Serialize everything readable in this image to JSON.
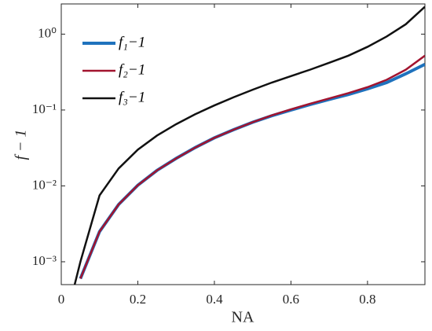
{
  "chart_data": {
    "type": "line",
    "xlabel": "NA",
    "ylabel": "f − 1",
    "x": [
      0.035,
      0.05,
      0.1,
      0.15,
      0.2,
      0.25,
      0.3,
      0.35,
      0.4,
      0.45,
      0.5,
      0.55,
      0.6,
      0.65,
      0.7,
      0.75,
      0.8,
      0.85,
      0.9,
      0.95
    ],
    "series": [
      {
        "name": "f₁−1",
        "color": "#1f72bd",
        "values": [
          null,
          0.0006,
          0.0025,
          0.0057,
          0.0102,
          0.016,
          0.023,
          0.032,
          0.043,
          0.055,
          0.069,
          0.084,
          0.1,
          0.118,
          0.138,
          0.16,
          0.19,
          0.23,
          0.3,
          0.4
        ]
      },
      {
        "name": "f₂−1",
        "color": "#a2142f",
        "values": [
          null,
          0.0006,
          0.0025,
          0.0057,
          0.0102,
          0.016,
          0.023,
          0.032,
          0.043,
          0.055,
          0.069,
          0.085,
          0.102,
          0.121,
          0.142,
          0.167,
          0.2,
          0.25,
          0.34,
          0.52
        ]
      },
      {
        "name": "f₃−1",
        "color": "#111111",
        "values": [
          0.0005,
          0.001,
          0.0075,
          0.017,
          0.03,
          0.046,
          0.065,
          0.088,
          0.115,
          0.147,
          0.185,
          0.23,
          0.28,
          0.34,
          0.42,
          0.52,
          0.68,
          0.93,
          1.35,
          2.3
        ]
      }
    ],
    "xlim": [
      0,
      0.95
    ],
    "xticks": [
      0,
      0.2,
      0.4,
      0.6,
      0.8
    ],
    "ylim": [
      0.0005,
      2.5
    ],
    "ylog": true,
    "yticks": [
      {
        "value": 0.001,
        "label": "10⁻³"
      },
      {
        "value": 0.01,
        "label": "10⁻²"
      },
      {
        "value": 0.1,
        "label": "10⁻¹"
      },
      {
        "value": 1,
        "label": "10⁰"
      }
    ],
    "legend": "upper left",
    "grid": false
  }
}
